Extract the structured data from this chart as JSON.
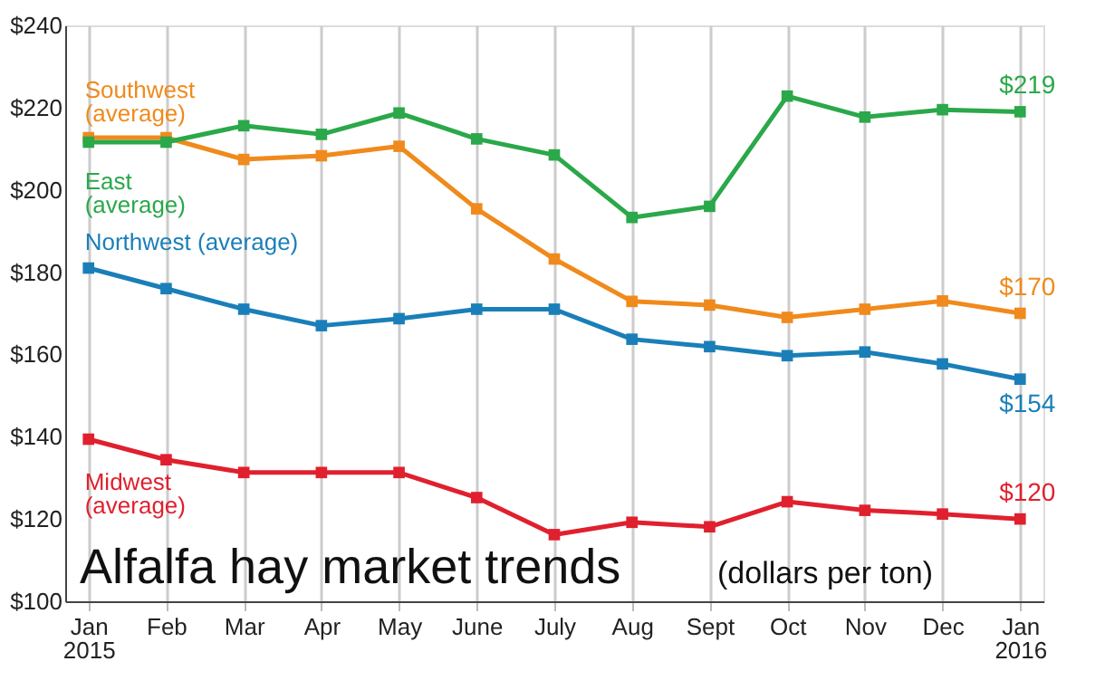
{
  "chart_data": {
    "type": "line",
    "title": "Alfalfa hay market trends",
    "subtitle": "(dollars per ton)",
    "categories": [
      "Jan\n2015",
      "Feb",
      "Mar",
      "Apr",
      "May",
      "June",
      "July",
      "Aug",
      "Sept",
      "Oct",
      "Nov",
      "Dec",
      "Jan\n2016"
    ],
    "series": [
      {
        "name": "Southwest\n(average)",
        "color": "#f08a1c",
        "values": [
          212.7,
          212.7,
          207.4,
          208.3,
          210.6,
          195.4,
          183.2,
          172.9,
          172,
          169,
          171,
          173,
          170
        ],
        "value_labels": [
          null,
          null,
          null,
          null,
          null,
          null,
          null,
          null,
          null,
          null,
          null,
          null,
          "$170"
        ]
      },
      {
        "name": "East\n(average)",
        "color": "#2aa84a",
        "values": [
          211.6,
          211.6,
          215.6,
          213.5,
          218.7,
          212.4,
          208.5,
          193.3,
          196,
          222.8,
          217.7,
          219.5,
          219
        ],
        "value_labels": [
          null,
          null,
          null,
          null,
          null,
          null,
          null,
          null,
          null,
          null,
          null,
          null,
          "$219"
        ]
      },
      {
        "name": "Northwest (average)",
        "color": "#1a7fb8",
        "values": [
          181,
          176,
          171,
          167,
          168.7,
          171,
          171,
          163.7,
          161.9,
          159.7,
          160.6,
          157.7,
          154
        ],
        "value_labels": [
          null,
          null,
          null,
          null,
          null,
          null,
          null,
          null,
          null,
          null,
          null,
          null,
          "$154"
        ]
      },
      {
        "name": "Midwest\n(average)",
        "color": "#e0202e",
        "values": [
          139.4,
          134.4,
          131.3,
          131.3,
          131.3,
          125.2,
          116.2,
          119.2,
          118.1,
          124.2,
          122.1,
          121.2,
          120
        ],
        "value_labels": [
          null,
          null,
          null,
          null,
          null,
          null,
          null,
          null,
          null,
          null,
          null,
          null,
          "$120"
        ]
      }
    ],
    "ylim": [
      100,
      240
    ],
    "yticks": [
      {
        "value": 100,
        "label": "$100"
      },
      {
        "value": 120,
        "label": "$120"
      },
      {
        "value": 140,
        "label": "$140"
      },
      {
        "value": 160,
        "label": "$160"
      },
      {
        "value": 180,
        "label": "$180"
      },
      {
        "value": 200,
        "label": "$200"
      },
      {
        "value": 220,
        "label": "$220"
      },
      {
        "value": 240,
        "label": "$240"
      }
    ],
    "grid": "x",
    "marker": "square",
    "line_style": "solid"
  }
}
